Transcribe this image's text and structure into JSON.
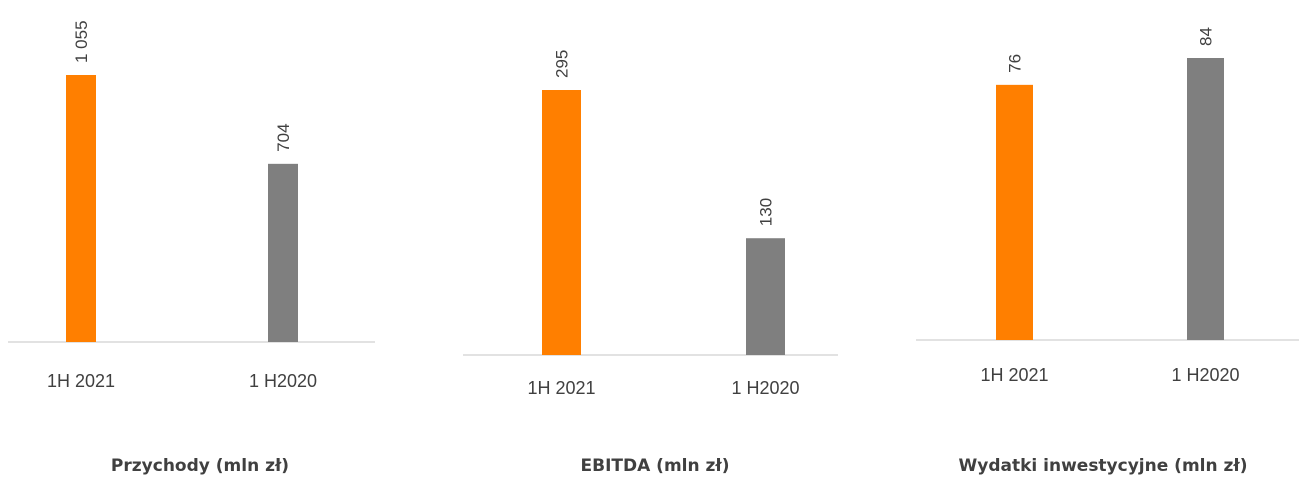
{
  "colors": {
    "current": "#FF7F00",
    "previous": "#7F7F7F",
    "axis": "#d9d9d9",
    "text": "#404040"
  },
  "chart_data": [
    {
      "type": "bar",
      "title": "Przychody (mln zł)",
      "categories": [
        "1H 2021",
        "1 H2020"
      ],
      "values": [
        1055,
        704
      ],
      "value_labels": [
        "1 055",
        "704"
      ],
      "ylim": [
        0,
        1055
      ],
      "grid": false,
      "legend": "none"
    },
    {
      "type": "bar",
      "title": "EBITDA (mln zł)",
      "categories": [
        "1H 2021",
        "1 H2020"
      ],
      "values": [
        295,
        130
      ],
      "value_labels": [
        "295",
        "130"
      ],
      "ylim": [
        0,
        295
      ],
      "grid": false,
      "legend": "none"
    },
    {
      "type": "bar",
      "title": "Wydatki inwestycyjne (mln zł)",
      "categories": [
        "1H 2021",
        "1 H2020"
      ],
      "values": [
        76,
        84
      ],
      "value_labels": [
        "76",
        "84"
      ],
      "ylim": [
        0,
        84
      ],
      "grid": false,
      "legend": "none"
    }
  ]
}
